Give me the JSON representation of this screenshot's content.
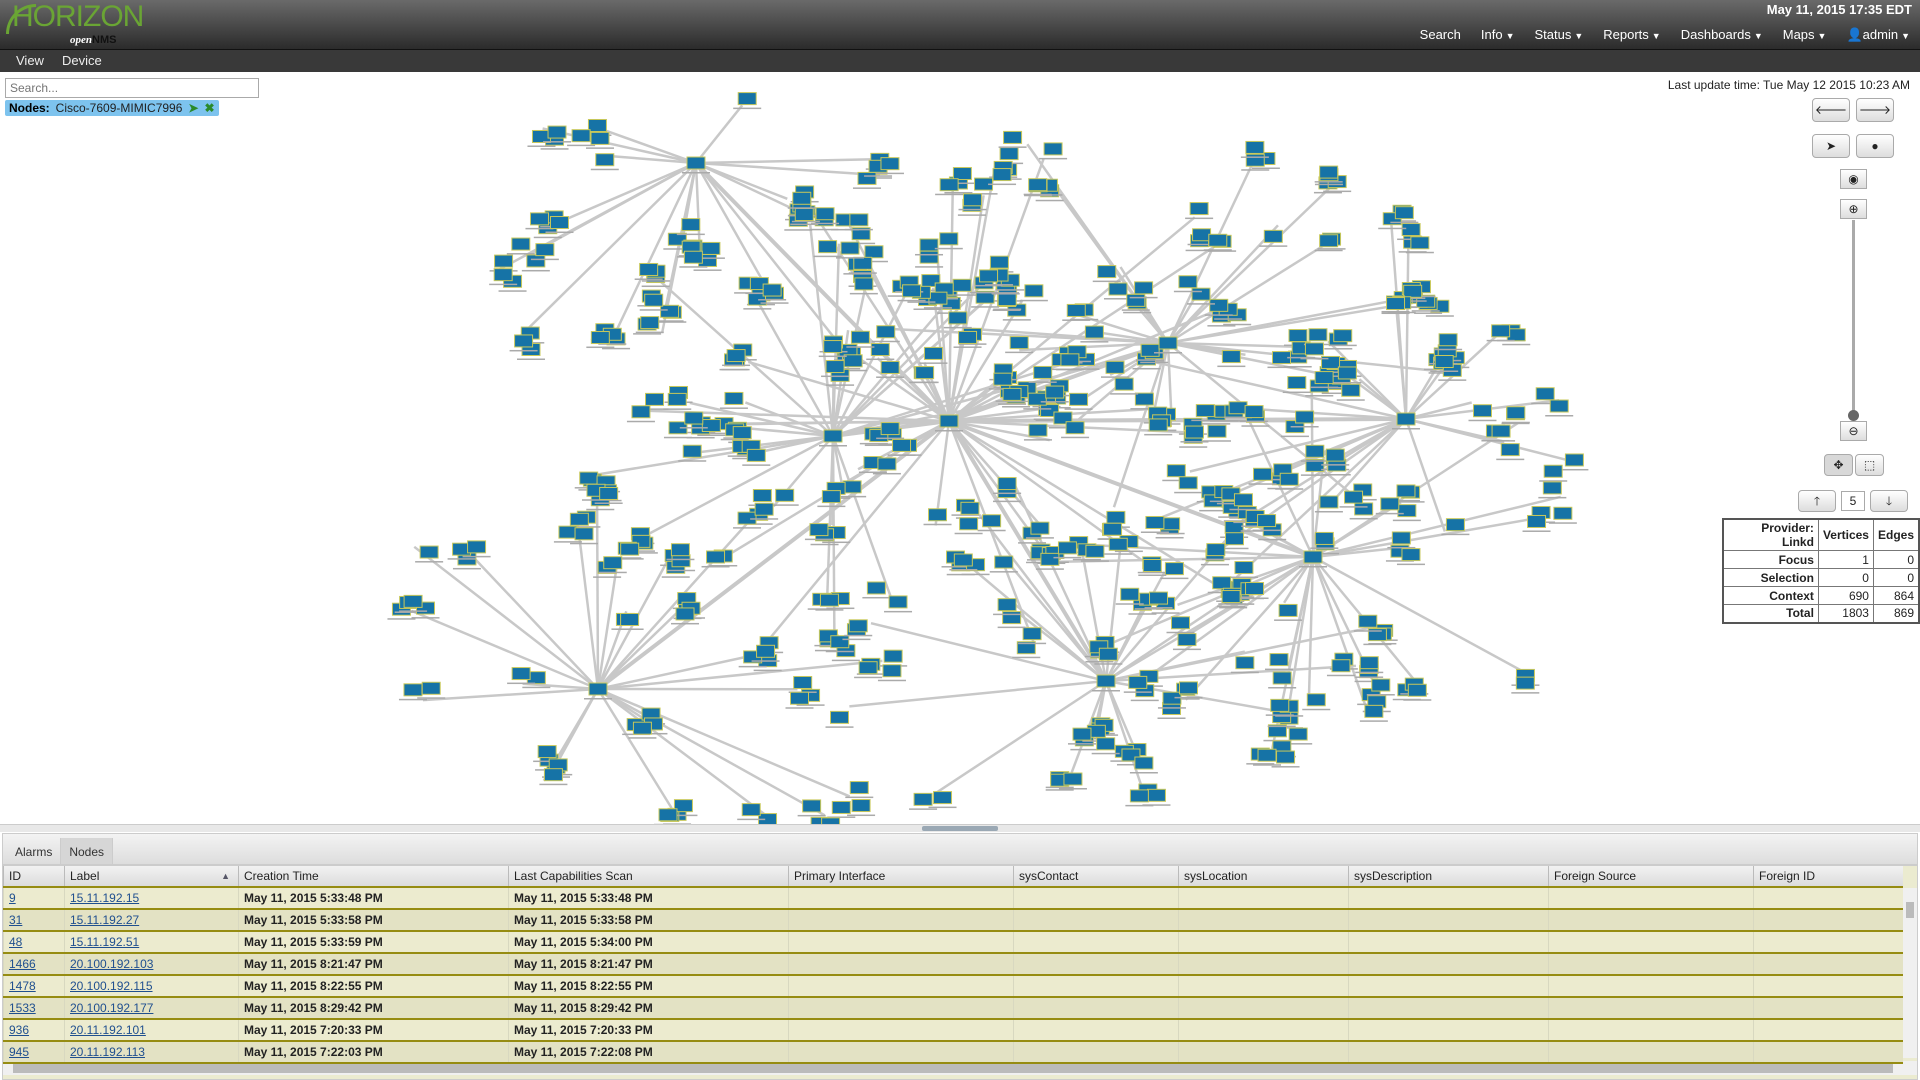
{
  "header": {
    "logo_text": "HORIZON openNMS",
    "clock": "May 11, 2015 17:35 EDT",
    "nav": [
      {
        "label": "Search",
        "dropdown": false
      },
      {
        "label": "Info",
        "dropdown": true
      },
      {
        "label": "Status",
        "dropdown": true
      },
      {
        "label": "Reports",
        "dropdown": true
      },
      {
        "label": "Dashboards",
        "dropdown": true
      },
      {
        "label": "Maps",
        "dropdown": true
      },
      {
        "label": "admin",
        "dropdown": true,
        "icon": "user-icon"
      }
    ]
  },
  "menubar": {
    "items": [
      "View",
      "Device"
    ]
  },
  "topology": {
    "search_placeholder": "Search...",
    "focus_chip": {
      "prefix": "Nodes:",
      "value": "Cisco-7609-MIMIC7996"
    },
    "last_update": "Last update time: Tue May 12 2015 10:23 AM",
    "semantic_zoom_level": "5",
    "zoom_level_fraction": 0.0,
    "colors": {
      "node_fill": "#1673a6",
      "node_border": "#c8c85a",
      "edge": "#c8c8c8"
    },
    "stats": {
      "headers": [
        "Provider: Linkd",
        "Vertices",
        "Edges"
      ],
      "rows": [
        [
          "Focus",
          "1",
          "0"
        ],
        [
          "Selection",
          "0",
          "0"
        ],
        [
          "Context",
          "690",
          "864"
        ],
        [
          "Total",
          "1803",
          "869"
        ]
      ]
    }
  },
  "bottom": {
    "tabs": [
      "Alarms",
      "Nodes"
    ],
    "active_tab": "Nodes",
    "columns": [
      "ID",
      "Label",
      "Creation Time",
      "Last Capabilities Scan",
      "Primary Interface",
      "sysContact",
      "sysLocation",
      "sysDescription",
      "Foreign Source",
      "Foreign ID"
    ],
    "rows": [
      [
        "9",
        "15.11.192.15",
        "May 11, 2015 5:33:48 PM",
        "May 11, 2015 5:33:48 PM"
      ],
      [
        "31",
        "15.11.192.27",
        "May 11, 2015 5:33:58 PM",
        "May 11, 2015 5:33:58 PM"
      ],
      [
        "48",
        "15.11.192.51",
        "May 11, 2015 5:33:59 PM",
        "May 11, 2015 5:34:00 PM"
      ],
      [
        "1466",
        "20.100.192.103",
        "May 11, 2015 8:21:47 PM",
        "May 11, 2015 8:21:47 PM"
      ],
      [
        "1478",
        "20.100.192.115",
        "May 11, 2015 8:22:55 PM",
        "May 11, 2015 8:22:55 PM"
      ],
      [
        "1533",
        "20.100.192.177",
        "May 11, 2015 8:29:42 PM",
        "May 11, 2015 8:29:42 PM"
      ],
      [
        "936",
        "20.11.192.101",
        "May 11, 2015 7:20:33 PM",
        "May 11, 2015 7:20:33 PM"
      ],
      [
        "945",
        "20.11.192.113",
        "May 11, 2015 7:22:03 PM",
        "May 11, 2015 7:22:08 PM"
      ]
    ]
  }
}
